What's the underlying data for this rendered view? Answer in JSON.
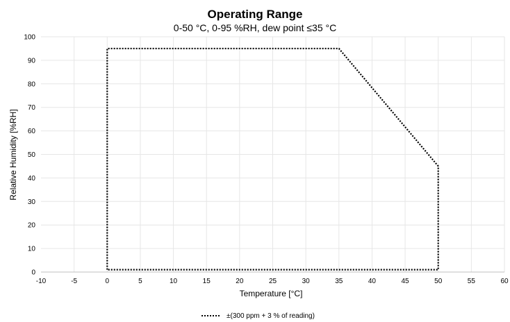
{
  "chart_data": {
    "type": "line",
    "title": "Operating Range",
    "subtitle": "0-50 °C, 0-95 %RH, dew point ≤35 °C",
    "xlabel": "Temperature [°C]",
    "ylabel": "Relative Humidity [%RH]",
    "xlim": [
      -10,
      60
    ],
    "ylim": [
      0,
      100
    ],
    "xticks": [
      -10,
      -5,
      0,
      5,
      10,
      15,
      20,
      25,
      30,
      35,
      40,
      45,
      50,
      55,
      60
    ],
    "yticks": [
      0,
      10,
      20,
      30,
      40,
      50,
      60,
      70,
      80,
      90,
      100
    ],
    "grid": true,
    "legend_position": "bottom-center",
    "series": [
      {
        "name": "±(300 ppm + 3 % of reading)",
        "style": "dotted",
        "color": "#000000",
        "x": [
          0,
          0,
          35,
          50,
          50,
          0
        ],
        "y": [
          1,
          95,
          95,
          45,
          1,
          1
        ]
      }
    ]
  }
}
